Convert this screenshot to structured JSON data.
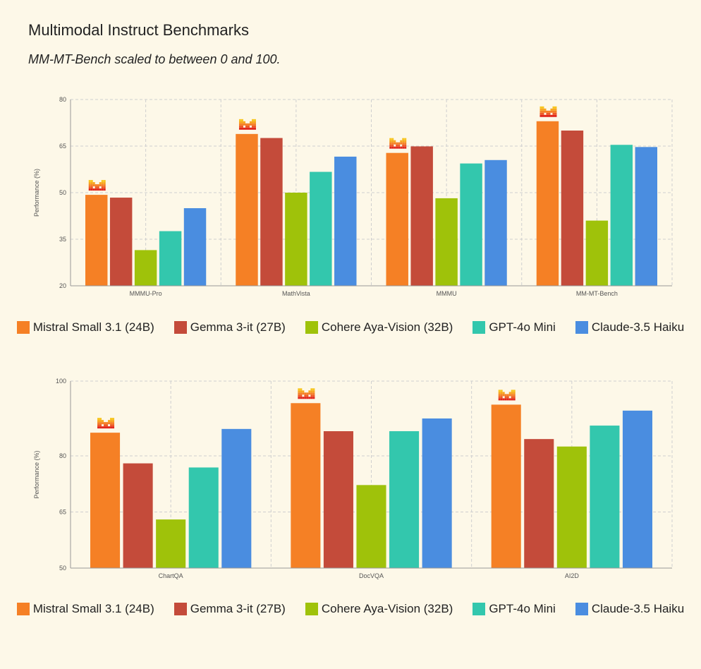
{
  "title": "Multimodal Instruct Benchmarks",
  "subtitle": "MM-MT-Bench scaled to between 0 and 100.",
  "colors": {
    "background": "#fdf8e8",
    "grid": "#cfcfcf",
    "axis": "#999999",
    "tick_text": "#555555",
    "badge_icon": "mistral-logo-icon"
  },
  "chart_data": [
    {
      "type": "bar",
      "ylabel": "Performance (%)",
      "xlabel": "",
      "ylim": [
        20,
        80
      ],
      "yticks": [
        20,
        35,
        50,
        65,
        80
      ],
      "categories": [
        "MMMU-Pro",
        "MathVista",
        "MMMU",
        "MM-MT-Bench"
      ],
      "series": [
        {
          "name": "Mistral Small 3.1 (24B)",
          "color": "#f58025",
          "values": [
            49.3,
            68.9,
            62.8,
            73.0
          ]
        },
        {
          "name": "Gemma 3-it (27B)",
          "color": "#c44b3a",
          "values": [
            48.4,
            67.6,
            64.9,
            70.0
          ]
        },
        {
          "name": "Cohere Aya-Vision (32B)",
          "color": "#9fc20a",
          "values": [
            31.5,
            50.0,
            48.2,
            41.0
          ]
        },
        {
          "name": "GPT-4o Mini",
          "color": "#33c7ad",
          "values": [
            37.6,
            56.7,
            59.4,
            65.4
          ]
        },
        {
          "name": "Claude-3.5 Haiku",
          "color": "#4a8de0",
          "values": [
            45.0,
            61.6,
            60.5,
            64.7
          ]
        }
      ],
      "grid": true,
      "legend_position": "bottom-center",
      "highlight_series": "Mistral Small 3.1 (24B)"
    },
    {
      "type": "bar",
      "ylabel": "Performance (%)",
      "xlabel": "",
      "ylim": [
        50,
        100
      ],
      "yticks": [
        50,
        65,
        80,
        100
      ],
      "categories": [
        "ChartQA",
        "DocVQA",
        "AI2D"
      ],
      "series": [
        {
          "name": "Mistral Small 3.1 (24B)",
          "color": "#f58025",
          "values": [
            86.2,
            94.1,
            93.7
          ]
        },
        {
          "name": "Gemma 3-it (27B)",
          "color": "#c44b3a",
          "values": [
            78.0,
            86.6,
            84.5
          ]
        },
        {
          "name": "Cohere Aya-Vision (32B)",
          "color": "#9fc20a",
          "values": [
            63.0,
            72.2,
            82.5
          ]
        },
        {
          "name": "GPT-4o Mini",
          "color": "#33c7ad",
          "values": [
            76.9,
            86.6,
            88.1
          ]
        },
        {
          "name": "Claude-3.5 Haiku",
          "color": "#4a8de0",
          "values": [
            87.2,
            90.0,
            92.1
          ]
        }
      ],
      "grid": true,
      "legend_position": "bottom-center",
      "highlight_series": "Mistral Small 3.1 (24B)"
    }
  ]
}
